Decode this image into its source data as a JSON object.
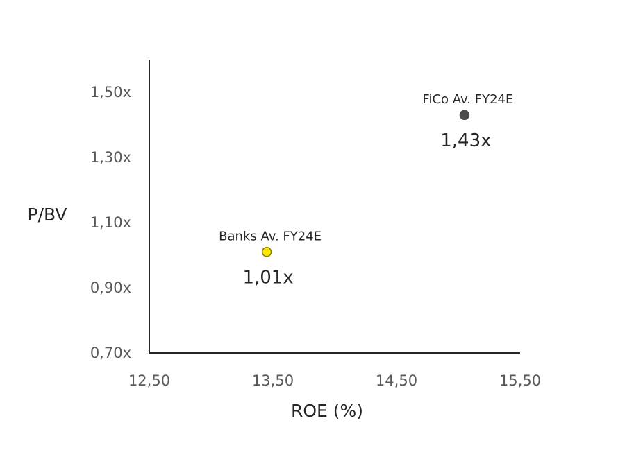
{
  "chart_data": {
    "type": "scatter",
    "xlabel": "ROE (%)",
    "ylabel": "P/BV",
    "xlim": [
      12.5,
      15.5
    ],
    "ylim": [
      0.7,
      1.6
    ],
    "x_ticks": [
      {
        "value": 12.5,
        "label": "12,50"
      },
      {
        "value": 13.5,
        "label": "13,50"
      },
      {
        "value": 14.5,
        "label": "14,50"
      },
      {
        "value": 15.5,
        "label": "15,50"
      }
    ],
    "y_ticks": [
      {
        "value": 0.7,
        "label": "0,70x"
      },
      {
        "value": 0.9,
        "label": "0,90x"
      },
      {
        "value": 1.1,
        "label": "1,10x"
      },
      {
        "value": 1.3,
        "label": "1,30x"
      },
      {
        "value": 1.5,
        "label": "1,50x"
      }
    ],
    "grid": false,
    "points": [
      {
        "name": "Banks Av. FY24E",
        "x": 13.45,
        "y": 1.01,
        "value_label": "1,01x",
        "color": "#FFE600",
        "stroke": "#7F7F00"
      },
      {
        "name": "FiCo Av. FY24E",
        "x": 15.05,
        "y": 1.43,
        "value_label": "1,43x",
        "color": "#4D4D4D",
        "stroke": "#4D4D4D"
      }
    ]
  }
}
